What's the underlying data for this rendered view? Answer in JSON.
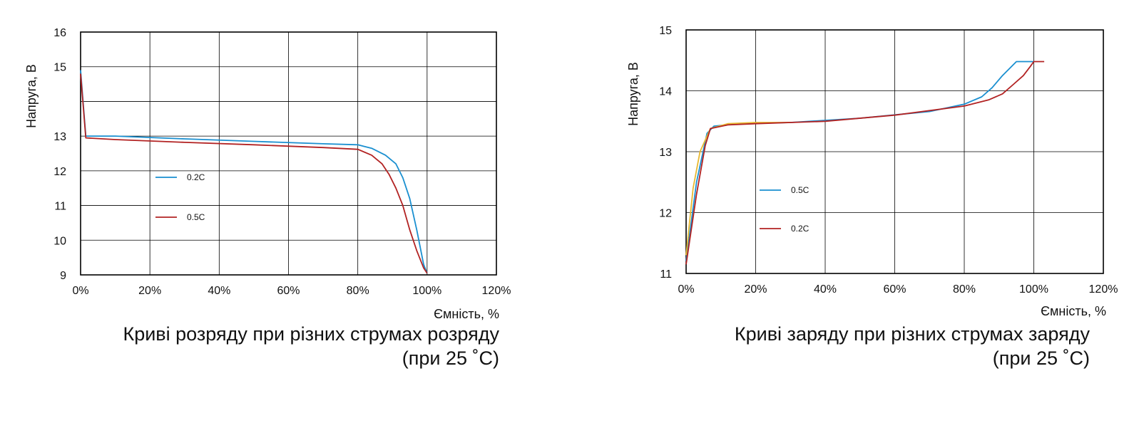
{
  "chart_data": [
    {
      "type": "line",
      "caption_line1": "Криві розряду при різних струмах розряду",
      "caption_line2": "(при 25 ˚С)",
      "xlabel": "Ємність, %",
      "ylabel": "Напруга, В",
      "xlim": [
        0,
        120
      ],
      "ylim": [
        9,
        16
      ],
      "x_ticks": [
        "0%",
        "20%",
        "40%",
        "60%",
        "80%",
        "100%",
        "120%"
      ],
      "y_ticks": [
        "9",
        "10",
        "11",
        "12",
        "13",
        "15",
        "16"
      ],
      "grid": true,
      "legend_position": "left-middle",
      "series": [
        {
          "name": "0.2C",
          "color": "#1a8fd0",
          "points": [
            [
              0,
              14.9
            ],
            [
              1.5,
              13.0
            ],
            [
              10,
              13.0
            ],
            [
              30,
              12.92
            ],
            [
              50,
              12.85
            ],
            [
              70,
              12.78
            ],
            [
              80,
              12.75
            ],
            [
              84,
              12.65
            ],
            [
              88,
              12.45
            ],
            [
              91,
              12.2
            ],
            [
              93,
              11.8
            ],
            [
              95,
              11.2
            ],
            [
              97,
              10.3
            ],
            [
              99,
              9.3
            ],
            [
              100,
              9.05
            ]
          ]
        },
        {
          "name": "0.5C",
          "color": "#b22222",
          "points": [
            [
              0,
              14.8
            ],
            [
              1.5,
              12.95
            ],
            [
              10,
              12.9
            ],
            [
              30,
              12.82
            ],
            [
              50,
              12.75
            ],
            [
              70,
              12.67
            ],
            [
              80,
              12.62
            ],
            [
              84,
              12.45
            ],
            [
              87,
              12.2
            ],
            [
              89,
              11.9
            ],
            [
              91,
              11.5
            ],
            [
              93,
              11.0
            ],
            [
              95,
              10.3
            ],
            [
              97,
              9.7
            ],
            [
              99,
              9.2
            ],
            [
              100,
              9.05
            ]
          ]
        }
      ]
    },
    {
      "type": "line",
      "caption_line1": "Криві заряду при різних струмах заряду",
      "caption_line2": "(при 25 ˚С)",
      "xlabel": "Ємність, %",
      "ylabel": "Напруга, В",
      "xlim": [
        0,
        120
      ],
      "ylim": [
        11,
        15
      ],
      "x_ticks": [
        "0%",
        "20%",
        "40%",
        "60%",
        "80%",
        "100%",
        "120%"
      ],
      "y_ticks": [
        "11",
        "12",
        "13",
        "14",
        "15"
      ],
      "grid": true,
      "legend_position": "left-middle",
      "series": [
        {
          "name": "0.5C",
          "color": "#1a8fd0",
          "points": [
            [
              0,
              11.2
            ],
            [
              3,
              12.5
            ],
            [
              6,
              13.3
            ],
            [
              8,
              13.42
            ],
            [
              15,
              13.46
            ],
            [
              30,
              13.48
            ],
            [
              50,
              13.55
            ],
            [
              70,
              13.66
            ],
            [
              80,
              13.78
            ],
            [
              85,
              13.9
            ],
            [
              88,
              14.05
            ],
            [
              91,
              14.25
            ],
            [
              95,
              14.48
            ],
            [
              100,
              14.48
            ]
          ]
        },
        {
          "name": "",
          "color": "#e8b830",
          "points": [
            [
              0,
              11.3
            ],
            [
              2,
              12.4
            ],
            [
              4,
              13.0
            ],
            [
              7,
              13.38
            ],
            [
              12,
              13.46
            ],
            [
              20,
              13.48
            ],
            [
              30,
              13.48
            ]
          ]
        },
        {
          "name": "0.2C",
          "color": "#b22222",
          "points": [
            [
              0,
              11.15
            ],
            [
              3,
              12.3
            ],
            [
              5.5,
              13.1
            ],
            [
              7,
              13.38
            ],
            [
              12,
              13.44
            ],
            [
              20,
              13.46
            ],
            [
              40,
              13.5
            ],
            [
              60,
              13.6
            ],
            [
              80,
              13.75
            ],
            [
              87,
              13.85
            ],
            [
              91,
              13.95
            ],
            [
              94,
              14.1
            ],
            [
              97,
              14.25
            ],
            [
              99,
              14.4
            ],
            [
              100,
              14.48
            ],
            [
              103,
              14.48
            ]
          ]
        }
      ]
    }
  ]
}
